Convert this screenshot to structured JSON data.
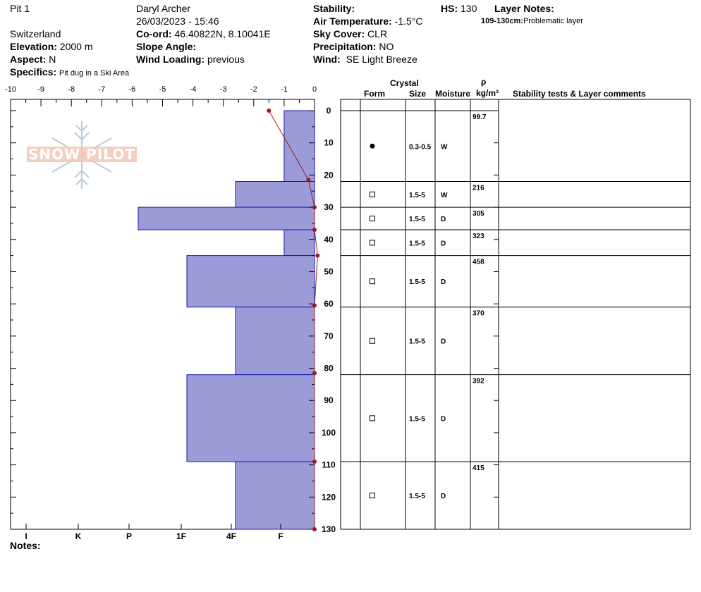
{
  "header": {
    "pit_name": "Pit 1",
    "observer": "Daryl Archer",
    "datetime": "26/03/2023 - 15:46",
    "location": "Switzerland",
    "elevation_label": "Elevation:",
    "elevation": "2000 m",
    "aspect_label": "Aspect:",
    "aspect": "N",
    "specifics_label": "Specifics:",
    "specifics": "Pit dug in a Ski Area",
    "coord_label": "Co-ord:",
    "coord": "46.40822N, 8.10041E",
    "slope_label": "Slope Angle:",
    "slope": "",
    "wind_loading_label": "Wind Loading:",
    "wind_loading": "previous",
    "stability_label": "Stability:",
    "stability": "",
    "air_temp_label": "Air Temperature:",
    "air_temp": "-1.5°C",
    "sky_label": "Sky Cover:",
    "sky": "CLR",
    "precip_label": "Precipitation:",
    "precip": "NO",
    "wind_label": "Wind:",
    "wind": "SE Light Breeze",
    "hs_label": "HS:",
    "hs": "130",
    "layer_notes_label": "Layer Notes:",
    "layer_note_range": "109-130cm:",
    "layer_note_text": "Problematic layer"
  },
  "logo_text": "SNOW PILOT",
  "notes_label": "Notes:",
  "colors": {
    "hardness_fill": "#9b9bd8",
    "hardness_stroke": "#1a1ab0",
    "temp_line": "#a01818"
  },
  "table_headers": {
    "crystal": "Crystal",
    "form": "Form",
    "size": "Size",
    "moisture": "Moisture",
    "rho": "ρ",
    "density_unit": "kg/m³",
    "comments": "Stability tests & Layer comments"
  },
  "chart_data": {
    "type": "snow-profile",
    "temperature_axis": {
      "ticks": [
        "-10",
        "-9",
        "-8",
        "-7",
        "-6",
        "-5",
        "-4",
        "-3",
        "-2",
        "-1",
        "0"
      ],
      "range": [
        -10,
        0
      ]
    },
    "hardness_axis": {
      "labels": [
        "I",
        "K",
        "P",
        "1F",
        "4F",
        "F"
      ]
    },
    "depth_axis": {
      "ticks": [
        "0",
        "10",
        "20",
        "30",
        "40",
        "50",
        "60",
        "70",
        "80",
        "90",
        "100",
        "110",
        "120",
        "130"
      ],
      "range": [
        0,
        130
      ]
    },
    "hardness_layers": [
      {
        "top": 0,
        "bottom": 22,
        "extent": 1.0
      },
      {
        "top": 22,
        "bottom": 30,
        "extent": 2.6
      },
      {
        "top": 30,
        "bottom": 37,
        "extent": 5.8
      },
      {
        "top": 37,
        "bottom": 45,
        "extent": 1.0
      },
      {
        "top": 45,
        "bottom": 61,
        "extent": 4.2
      },
      {
        "top": 61,
        "bottom": 82,
        "extent": 2.6
      },
      {
        "top": 82,
        "bottom": 109,
        "extent": 4.2
      },
      {
        "top": 109,
        "bottom": 130,
        "extent": 2.6
      }
    ],
    "temperature_profile": [
      {
        "depth": 0,
        "temp": -1.5
      },
      {
        "depth": 21.5,
        "temp": -0.2
      },
      {
        "depth": 30,
        "temp": 0.0
      },
      {
        "depth": 37,
        "temp": 0.0
      },
      {
        "depth": 45,
        "temp": 0.1
      },
      {
        "depth": 60.5,
        "temp": 0.0
      },
      {
        "depth": 81.5,
        "temp": 0.0
      },
      {
        "depth": 109,
        "temp": 0.0
      },
      {
        "depth": 130,
        "temp": 0.0
      }
    ],
    "layers": [
      {
        "top": 0,
        "bottom": 22,
        "form": "dot",
        "size": "0.3-0.5",
        "moisture": "W",
        "density": "99.7"
      },
      {
        "top": 22,
        "bottom": 30,
        "form": "square",
        "size": "1.5-5",
        "moisture": "W",
        "density": "216"
      },
      {
        "top": 30,
        "bottom": 37,
        "form": "square",
        "size": "1.5-5",
        "moisture": "D",
        "density": "305"
      },
      {
        "top": 37,
        "bottom": 45,
        "form": "square",
        "size": "1.5-5",
        "moisture": "D",
        "density": "323"
      },
      {
        "top": 45,
        "bottom": 61,
        "form": "square",
        "size": "1.5-5",
        "moisture": "D",
        "density": "458"
      },
      {
        "top": 61,
        "bottom": 82,
        "form": "square",
        "size": "1.5-5",
        "moisture": "D",
        "density": "370"
      },
      {
        "top": 82,
        "bottom": 109,
        "form": "square",
        "size": "1.5-5",
        "moisture": "D",
        "density": "392"
      },
      {
        "top": 109,
        "bottom": 130,
        "form": "square",
        "size": "1.5-5",
        "moisture": "D",
        "density": "415"
      }
    ]
  }
}
